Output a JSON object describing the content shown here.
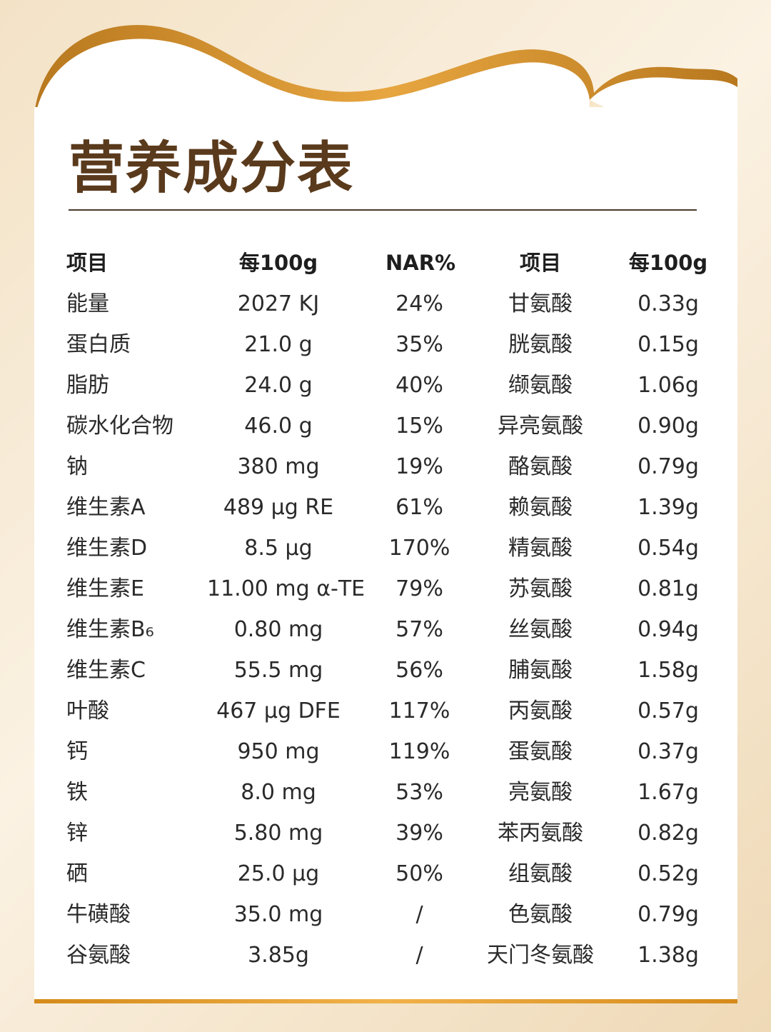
{
  "title": "营养成分表",
  "headers": [
    "项目",
    "每100g",
    "NAR%",
    "项目",
    "每100g"
  ],
  "rows": [
    [
      "能量",
      "2027 KJ",
      "24%",
      "甘氨酸",
      "0.33g"
    ],
    [
      "蛋白质",
      "21.0 g",
      "35%",
      "胱氨酸",
      "0.15g"
    ],
    [
      "脂肪",
      "24.0 g",
      "40%",
      "缬氨酸",
      "1.06g"
    ],
    [
      "碳水化合物",
      "46.0 g",
      "15%",
      "异亮氨酸",
      "0.90g"
    ],
    [
      "钠",
      "380 mg",
      "19%",
      "酪氨酸",
      "0.79g"
    ],
    [
      "维生素A",
      "489 μg RE",
      "61%",
      "赖氨酸",
      "1.39g"
    ],
    [
      "维生素D",
      "8.5 μg",
      "170%",
      "精氨酸",
      "0.54g"
    ],
    [
      "维生素E",
      "11.00 mg α-TE",
      "79%",
      "苏氨酸",
      "0.81g"
    ],
    [
      "维生素B₆",
      "0.80 mg",
      "57%",
      "丝氨酸",
      "0.94g"
    ],
    [
      "维生素C",
      "55.5 mg",
      "56%",
      "脯氨酸",
      "1.58g"
    ],
    [
      "叶酸",
      "467 μg DFE",
      "117%",
      "丙氨酸",
      "0.57g"
    ],
    [
      "钙",
      "950 mg",
      "119%",
      "蛋氨酸",
      "0.37g"
    ],
    [
      "铁",
      "8.0 mg",
      "53%",
      "亮氨酸",
      "1.67g"
    ],
    [
      "锌",
      "5.80 mg",
      "39%",
      "苯丙氨酸",
      "0.82g"
    ],
    [
      "硒",
      "25.0 μg",
      "50%",
      "组氨酸",
      "0.52g"
    ],
    [
      "牛磺酸",
      "35.0 mg",
      "/",
      "色氨酸",
      "0.79g"
    ],
    [
      "谷氨酸",
      "3.85g",
      "/",
      "天门冬氨酸",
      "1.38g"
    ]
  ],
  "colors": {
    "title": "#5a3a1c",
    "gold": "#d58a1a",
    "background": "#f3e2c6"
  }
}
